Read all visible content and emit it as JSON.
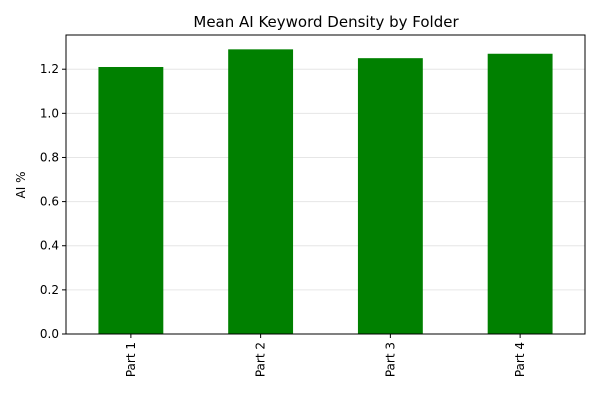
{
  "chart_data": {
    "type": "bar",
    "title": "Mean AI Keyword Density by Folder",
    "xlabel": "",
    "ylabel": "AI %",
    "categories": [
      "Part 1",
      "Part 2",
      "Part 3",
      "Part 4"
    ],
    "values": [
      1.21,
      1.29,
      1.25,
      1.27
    ],
    "ylim": [
      0,
      1.355
    ],
    "yticks": [
      "0.0",
      "0.2",
      "0.4",
      "0.6",
      "0.8",
      "1.0",
      "1.2"
    ],
    "grid": "y",
    "bar_color": "#008000",
    "grid_color": "#e6e6e6",
    "axis_color": "#000000"
  }
}
